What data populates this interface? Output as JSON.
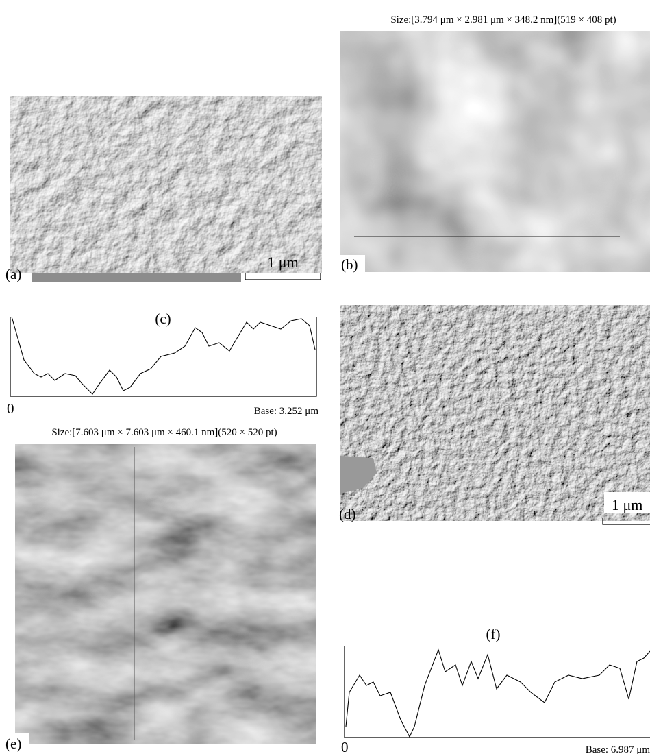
{
  "panels": {
    "a": {
      "label": "(a)",
      "scale_bar": "1 μm"
    },
    "b": {
      "label": "(b)",
      "caption": "Size:[3.794 μm × 2.981 μm × 348.2 nm](519 × 408 pt)"
    },
    "c": {
      "label": "(c)",
      "origin": "0",
      "base": "Base: 3.252 μm"
    },
    "d": {
      "label": "(d)",
      "scale_bar": "1 μm"
    },
    "e": {
      "label": "(e)",
      "caption": "Size:[7.603 μm × 7.603 μm × 460.1 nm](520 × 520 pt)"
    },
    "f": {
      "label": "(f)",
      "origin": "0",
      "base": "Base: 6.987 μm"
    }
  }
}
